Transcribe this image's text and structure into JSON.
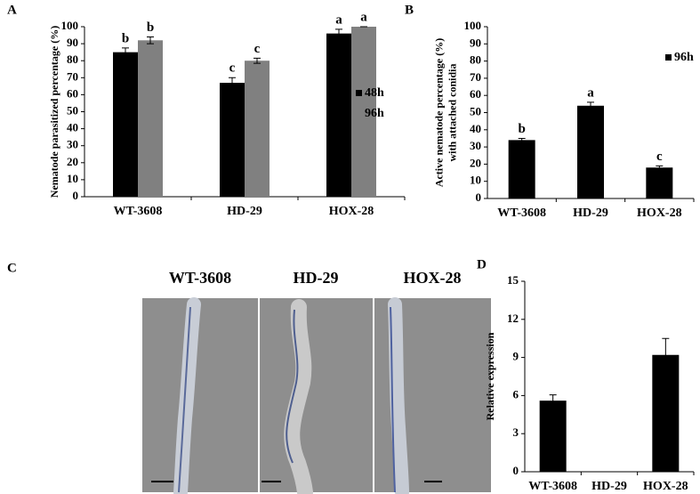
{
  "chart_data": [
    {
      "type": "bar",
      "panel": "A",
      "ylabel": [
        "Nematode parasitized percentage (%)"
      ],
      "categories": [
        "WT-3608",
        "HD-29",
        "HOX-28"
      ],
      "series": [
        {
          "name": "48h",
          "color": "#000000",
          "values": [
            85,
            67,
            96
          ],
          "errors": [
            2.5,
            3,
            2.5
          ],
          "letters": [
            "b",
            "c",
            "a"
          ]
        },
        {
          "name": "96h",
          "color": "#808080",
          "values": [
            92,
            80,
            100
          ],
          "errors": [
            2,
            1.5,
            0
          ],
          "letters": [
            "b",
            "c",
            "a"
          ]
        }
      ],
      "ylim": [
        0,
        100
      ],
      "yticks": [
        0,
        10,
        20,
        30,
        40,
        50,
        60,
        70,
        80,
        90,
        100
      ],
      "legend": true
    },
    {
      "type": "bar",
      "panel": "B",
      "ylabel": [
        "Active nematode percentage (%)",
        "with attached conidia"
      ],
      "categories": [
        "WT-3608",
        "HD-29",
        "HOX-28"
      ],
      "series": [
        {
          "name": "96h",
          "color": "#000000",
          "values": [
            34,
            54,
            18
          ],
          "errors": [
            1,
            2,
            1
          ],
          "letters": [
            "b",
            "a",
            "c"
          ]
        }
      ],
      "ylim": [
        0,
        100
      ],
      "yticks": [
        0,
        10,
        20,
        30,
        40,
        50,
        60,
        70,
        80,
        90,
        100
      ],
      "legend": true
    },
    {
      "type": "bar",
      "panel": "D",
      "ylabel": [
        "Relative expression"
      ],
      "categories": [
        "WT-3608",
        "HD-29",
        "HOX-28"
      ],
      "series": [
        {
          "color": "#000000",
          "values": [
            5.6,
            0,
            9.2
          ],
          "errors": [
            0.45,
            0,
            1.3
          ]
        }
      ],
      "ylim": [
        0,
        15
      ],
      "yticks": [
        0,
        3,
        6,
        9,
        12,
        15
      ],
      "legend": false
    }
  ],
  "figure_c": {
    "panel": "C",
    "images": [
      "WT-3608",
      "HD-29",
      "HOX-28"
    ]
  }
}
